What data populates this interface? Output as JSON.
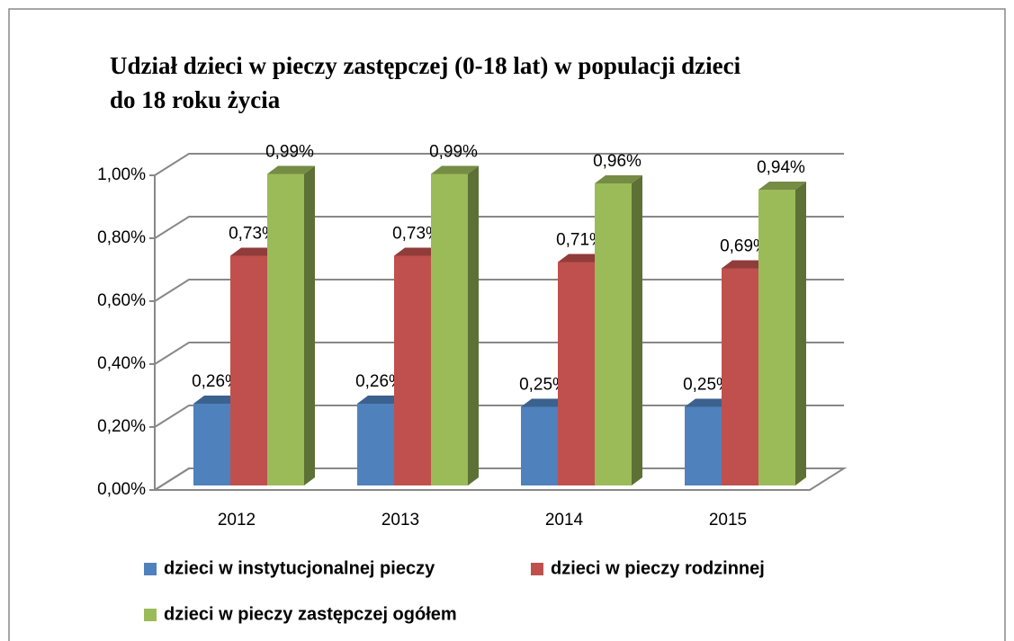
{
  "chart_data": {
    "type": "bar3d",
    "title": [
      "Udział dzieci w pieczy zastępczej  (0-18 lat)  w populacji  dzieci",
      "do 18 roku życia"
    ],
    "categories": [
      "2012",
      "2013",
      "2014",
      "2015"
    ],
    "series": [
      {
        "name": "dzieci w instytucjonalnej pieczy",
        "color": "#4f81bd",
        "values": [
          0.26,
          0.26,
          0.25,
          0.25
        ],
        "value_labels": [
          "0,26%",
          "0,26%",
          "0,25%",
          "0,25%"
        ]
      },
      {
        "name": "dzieci w pieczy rodzinnej",
        "color": "#c0504d",
        "values": [
          0.73,
          0.73,
          0.71,
          0.69
        ],
        "value_labels": [
          "0,73%",
          "0,73%",
          "0,71%",
          "0,69%"
        ]
      },
      {
        "name": "dzieci w pieczy zastępczej ogółem",
        "color": "#9bbb59",
        "values": [
          0.99,
          0.99,
          0.96,
          0.94
        ],
        "value_labels": [
          "0,99%",
          "0,99%",
          "0,96%",
          "0,94%"
        ]
      }
    ],
    "ylim": [
      0,
      1
    ],
    "yticks": [
      {
        "value": 0,
        "label": "0,00%"
      },
      {
        "value": 0.2,
        "label": "0,20%"
      },
      {
        "value": 0.4,
        "label": "0,40%"
      },
      {
        "value": 0.6,
        "label": "0,60%"
      },
      {
        "value": 0.8,
        "label": "0,80%"
      },
      {
        "value": 1,
        "label": "1,00%"
      }
    ],
    "grid": true
  }
}
